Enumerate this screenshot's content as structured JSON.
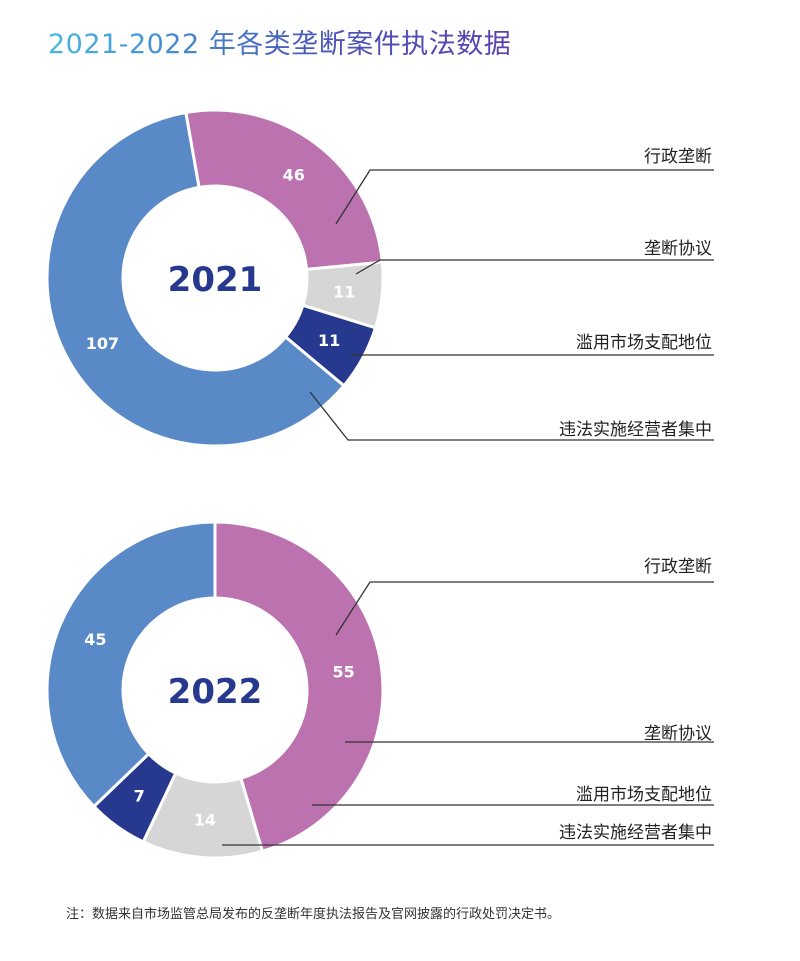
{
  "page": {
    "title": "2021-2022 年各类垄断案件执法数据"
  },
  "colors": {
    "行政垄断": "#bb72ae",
    "垄断协议": "#d6d6d6",
    "滥用市场支配地位": "#26398e",
    "违法实施经营者集中": "#5a89c8",
    "center_text": "#26398e",
    "leader": "#333333"
  },
  "chart_data": [
    {
      "type": "pie",
      "title": "2021",
      "categories": [
        "行政垄断",
        "垄断协议",
        "滥用市场支配地位",
        "违法实施经营者集中"
      ],
      "values": [
        46,
        11,
        11,
        107
      ],
      "value_labels": [
        "46",
        "11",
        "11",
        "107"
      ]
    },
    {
      "type": "pie",
      "title": "2022",
      "categories": [
        "行政垄断",
        "垄断协议",
        "滥用市场支配地位",
        "违法实施经营者集中"
      ],
      "values": [
        55,
        14,
        7,
        45
      ],
      "value_labels": [
        "55",
        "14",
        "7",
        "45"
      ]
    }
  ],
  "footnote": "注：数据来自市场监管总局发布的反垄断年度执法报告及官网披露的行政处罚决定书。"
}
